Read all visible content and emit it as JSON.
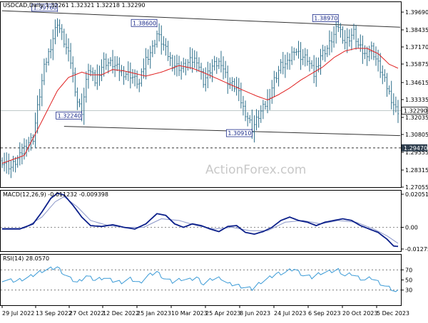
{
  "chart_data": [
    {
      "type": "candlestick",
      "header": "USDCAD,Daily  1.32261 1.32321 1.32218 1.32290",
      "watermark": "ActionForex.com",
      "ylim": [
        1.265,
        1.405
      ],
      "y_ticks": [
        "1.39690",
        "1.38435",
        "1.37170",
        "1.35875",
        "1.34615",
        "1.33335",
        "1.32035",
        "1.30805",
        "1.29555",
        "1.28315",
        "1.27055"
      ],
      "x_ticks": [
        "29 Jul 2022",
        "13 Sep 2022",
        "27 Oct 2022",
        "12 Dec 2022",
        "25 Jan 2023",
        "10 Mar 2023",
        "25 Apr 2023",
        "8 Jun 2023",
        "24 Jul 2023",
        "6 Sep 2023",
        "20 Oct 2023",
        "5 Dec 2023"
      ],
      "last_price": "1.32290",
      "support_level": "1.29470",
      "support_value": 1.2947,
      "price_labels": [
        {
          "text": "1.39760",
          "value": 1.3976,
          "i": 25
        },
        {
          "text": "1.38600",
          "value": 1.386,
          "i": 70
        },
        {
          "text": "1.38970",
          "value": 1.3897,
          "i": 152
        },
        {
          "text": "1.32240",
          "value": 1.3224,
          "i": 36
        },
        {
          "text": "1.30910",
          "value": 1.3091,
          "i": 113
        }
      ],
      "channel_upper": [
        {
          "i": 0,
          "v": 1.3985
        },
        {
          "i": 180,
          "v": 1.386
        }
      ],
      "channel_lower": [
        {
          "i": 28,
          "v": 1.311
        },
        {
          "i": 180,
          "v": 1.304
        }
      ],
      "sma_color": "#e02020",
      "series_color": "#2c6e8a",
      "anchors": [
        [
          0,
          1.285
        ],
        [
          4,
          1.28
        ],
        [
          8,
          1.288
        ],
        [
          11,
          1.298
        ],
        [
          14,
          1.302
        ],
        [
          16,
          1.325
        ],
        [
          19,
          1.355
        ],
        [
          22,
          1.372
        ],
        [
          25,
          1.39
        ],
        [
          28,
          1.375
        ],
        [
          31,
          1.36
        ],
        [
          34,
          1.33
        ],
        [
          36,
          1.3224
        ],
        [
          39,
          1.355
        ],
        [
          42,
          1.345
        ],
        [
          46,
          1.36
        ],
        [
          50,
          1.358
        ],
        [
          54,
          1.352
        ],
        [
          58,
          1.35
        ],
        [
          62,
          1.343
        ],
        [
          65,
          1.362
        ],
        [
          68,
          1.37
        ],
        [
          70,
          1.381
        ],
        [
          73,
          1.372
        ],
        [
          77,
          1.358
        ],
        [
          81,
          1.355
        ],
        [
          85,
          1.36
        ],
        [
          88,
          1.362
        ],
        [
          91,
          1.345
        ],
        [
          95,
          1.356
        ],
        [
          99,
          1.36
        ],
        [
          102,
          1.345
        ],
        [
          106,
          1.34
        ],
        [
          109,
          1.325
        ],
        [
          112,
          1.314
        ],
        [
          113,
          1.3091
        ],
        [
          117,
          1.322
        ],
        [
          120,
          1.33
        ],
        [
          123,
          1.346
        ],
        [
          126,
          1.357
        ],
        [
          129,
          1.358
        ],
        [
          132,
          1.37
        ],
        [
          135,
          1.364
        ],
        [
          138,
          1.362
        ],
        [
          141,
          1.35
        ],
        [
          144,
          1.365
        ],
        [
          147,
          1.37
        ],
        [
          150,
          1.38
        ],
        [
          152,
          1.387
        ],
        [
          155,
          1.375
        ],
        [
          157,
          1.378
        ],
        [
          159,
          1.382
        ],
        [
          161,
          1.372
        ],
        [
          164,
          1.365
        ],
        [
          167,
          1.37
        ],
        [
          170,
          1.358
        ],
        [
          173,
          1.345
        ],
        [
          176,
          1.332
        ],
        [
          178,
          1.324
        ],
        [
          179,
          1.3229
        ]
      ],
      "sma": [
        [
          0,
          1.283
        ],
        [
          10,
          1.289
        ],
        [
          18,
          1.315
        ],
        [
          25,
          1.338
        ],
        [
          30,
          1.348
        ],
        [
          36,
          1.352
        ],
        [
          40,
          1.35
        ],
        [
          45,
          1.35
        ],
        [
          50,
          1.354
        ],
        [
          55,
          1.353
        ],
        [
          60,
          1.351
        ],
        [
          65,
          1.349
        ],
        [
          72,
          1.352
        ],
        [
          80,
          1.357
        ],
        [
          86,
          1.355
        ],
        [
          92,
          1.351
        ],
        [
          100,
          1.345
        ],
        [
          108,
          1.339
        ],
        [
          115,
          1.334
        ],
        [
          120,
          1.331
        ],
        [
          125,
          1.335
        ],
        [
          130,
          1.34
        ],
        [
          135,
          1.346
        ],
        [
          140,
          1.351
        ],
        [
          145,
          1.356
        ],
        [
          150,
          1.363
        ],
        [
          155,
          1.368
        ],
        [
          160,
          1.37
        ],
        [
          165,
          1.37
        ],
        [
          170,
          1.366
        ],
        [
          175,
          1.358
        ],
        [
          179,
          1.355
        ]
      ]
    },
    {
      "type": "line",
      "header": "MACD(12,26,9) -0.011232 -0.009398",
      "ylim": [
        -0.014,
        0.0215
      ],
      "y_ticks": [
        "0.020518",
        "0.00",
        "-0.012755"
      ],
      "zero_label": "0.00",
      "series": [
        {
          "name": "MACD",
          "color": "#0b1f8a",
          "points": [
            [
              0,
              -0.001
            ],
            [
              8,
              -0.001
            ],
            [
              14,
              0.002
            ],
            [
              18,
              0.009
            ],
            [
              22,
              0.017
            ],
            [
              25,
              0.02
            ],
            [
              28,
              0.019
            ],
            [
              32,
              0.013
            ],
            [
              36,
              0.006
            ],
            [
              40,
              0.001
            ],
            [
              45,
              0.0005
            ],
            [
              50,
              0.0015
            ],
            [
              55,
              0.0
            ],
            [
              60,
              -0.001
            ],
            [
              65,
              0.002
            ],
            [
              70,
              0.008
            ],
            [
              74,
              0.007
            ],
            [
              78,
              0.002
            ],
            [
              82,
              0.0
            ],
            [
              86,
              0.002
            ],
            [
              90,
              0.001
            ],
            [
              94,
              -0.001
            ],
            [
              98,
              -0.0025
            ],
            [
              102,
              0.0005
            ],
            [
              106,
              0.001
            ],
            [
              110,
              -0.003
            ],
            [
              114,
              -0.004
            ],
            [
              118,
              -0.0025
            ],
            [
              122,
              0.0
            ],
            [
              126,
              0.004
            ],
            [
              130,
              0.006
            ],
            [
              134,
              0.004
            ],
            [
              138,
              0.003
            ],
            [
              142,
              0.001
            ],
            [
              146,
              0.003
            ],
            [
              150,
              0.004
            ],
            [
              154,
              0.005
            ],
            [
              158,
              0.004
            ],
            [
              162,
              0.001
            ],
            [
              166,
              -0.001
            ],
            [
              170,
              -0.003
            ],
            [
              174,
              -0.007
            ],
            [
              177,
              -0.011
            ],
            [
              179,
              -0.0112
            ]
          ]
        },
        {
          "name": "Signal",
          "color": "#8a96c8",
          "points": [
            [
              0,
              -0.0005
            ],
            [
              10,
              -0.0005
            ],
            [
              18,
              0.006
            ],
            [
              24,
              0.015
            ],
            [
              28,
              0.018
            ],
            [
              34,
              0.012
            ],
            [
              40,
              0.004
            ],
            [
              48,
              0.001
            ],
            [
              56,
              0.0
            ],
            [
              64,
              0.0
            ],
            [
              72,
              0.005
            ],
            [
              80,
              0.004
            ],
            [
              88,
              0.001
            ],
            [
              96,
              -0.001
            ],
            [
              104,
              0.0
            ],
            [
              112,
              -0.002
            ],
            [
              120,
              -0.002
            ],
            [
              128,
              0.003
            ],
            [
              136,
              0.004
            ],
            [
              144,
              0.002
            ],
            [
              152,
              0.004
            ],
            [
              160,
              0.003
            ],
            [
              168,
              -0.001
            ],
            [
              174,
              -0.005
            ],
            [
              179,
              -0.0094
            ]
          ]
        }
      ]
    },
    {
      "type": "line",
      "header": "RSI(14) 28.0570",
      "ylim": [
        0,
        100
      ],
      "y_ticks": [
        "70",
        "50",
        "30"
      ],
      "levels": [
        70,
        30
      ],
      "series": [
        {
          "name": "RSI",
          "color": "#3a9ad6",
          "points": [
            [
              0,
              50
            ],
            [
              6,
              48
            ],
            [
              12,
              55
            ],
            [
              18,
              68
            ],
            [
              22,
              72
            ],
            [
              25,
              75
            ],
            [
              28,
              62
            ],
            [
              31,
              52
            ],
            [
              34,
              45
            ],
            [
              38,
              58
            ],
            [
              42,
              50
            ],
            [
              46,
              55
            ],
            [
              50,
              48
            ],
            [
              54,
              46
            ],
            [
              58,
              52
            ],
            [
              62,
              44
            ],
            [
              66,
              58
            ],
            [
              70,
              66
            ],
            [
              73,
              54
            ],
            [
              77,
              46
            ],
            [
              81,
              52
            ],
            [
              85,
              50
            ],
            [
              88,
              55
            ],
            [
              91,
              42
            ],
            [
              95,
              52
            ],
            [
              99,
              54
            ],
            [
              102,
              42
            ],
            [
              106,
              40
            ],
            [
              110,
              35
            ],
            [
              113,
              32
            ],
            [
              117,
              46
            ],
            [
              120,
              52
            ],
            [
              124,
              62
            ],
            [
              128,
              65
            ],
            [
              132,
              72
            ],
            [
              136,
              60
            ],
            [
              140,
              55
            ],
            [
              144,
              64
            ],
            [
              148,
              66
            ],
            [
              152,
              70
            ],
            [
              155,
              58
            ],
            [
              158,
              62
            ],
            [
              161,
              55
            ],
            [
              164,
              50
            ],
            [
              167,
              54
            ],
            [
              170,
              46
            ],
            [
              173,
              38
            ],
            [
              176,
              32
            ],
            [
              178,
              26
            ],
            [
              179,
              28
            ]
          ]
        }
      ]
    }
  ]
}
